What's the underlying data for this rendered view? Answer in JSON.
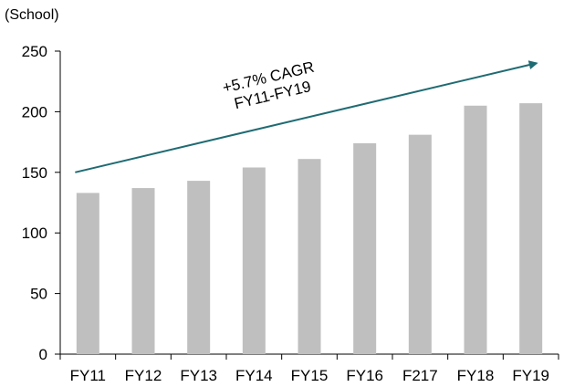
{
  "chart_data": {
    "type": "bar",
    "unit_label": "(School)",
    "categories": [
      "FY11",
      "FY12",
      "FY13",
      "FY14",
      "FY15",
      "FY16",
      "F217",
      "FY18",
      "FY19"
    ],
    "values": [
      133,
      137,
      143,
      154,
      161,
      174,
      181,
      205,
      207
    ],
    "ylim": [
      0,
      250
    ],
    "yticks": [
      0,
      50,
      100,
      150,
      200,
      250
    ],
    "grid": false,
    "legend": "none",
    "annotation": {
      "line1": "+5.7% CAGR",
      "line2": "FY11-FY19",
      "trend_start_value": 150,
      "trend_end_value": 240,
      "trend_start_category": "FY11",
      "trend_end_category": "FY19"
    },
    "colors": {
      "bar": "#bfbfbf",
      "axis": "#000000",
      "trend_arrow": "#1f6b73"
    }
  }
}
